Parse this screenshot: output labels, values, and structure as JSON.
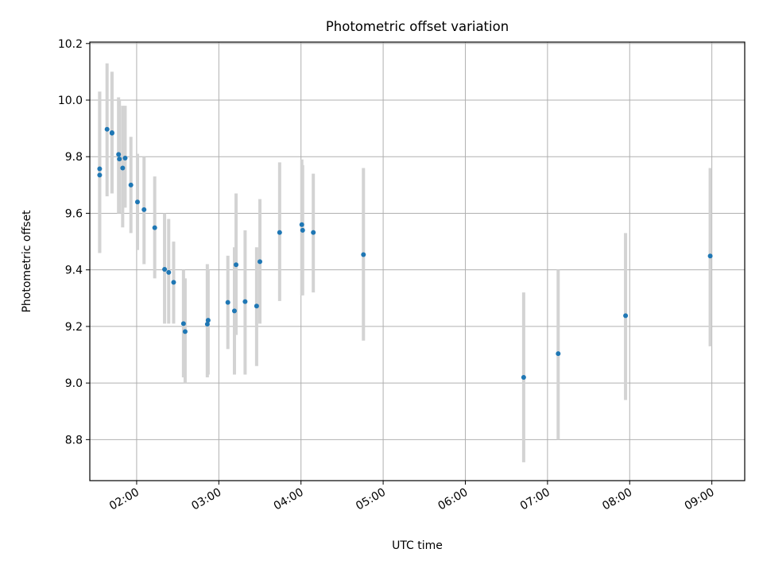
{
  "chart_data": {
    "type": "scatter",
    "title": "Photometric offset variation",
    "xlabel": "UTC time",
    "ylabel": "Photometric offset",
    "x_unit": "hours UTC",
    "xlim": [
      1.43,
      9.4
    ],
    "ylim": [
      8.655,
      10.205
    ],
    "x_ticks": [
      {
        "value": 2,
        "label": "02:00"
      },
      {
        "value": 3,
        "label": "03:00"
      },
      {
        "value": 4,
        "label": "04:00"
      },
      {
        "value": 5,
        "label": "05:00"
      },
      {
        "value": 6,
        "label": "06:00"
      },
      {
        "value": 7,
        "label": "07:00"
      },
      {
        "value": 8,
        "label": "08:00"
      },
      {
        "value": 9,
        "label": "09:00"
      }
    ],
    "y_ticks": [
      {
        "value": 8.8,
        "label": "8.8"
      },
      {
        "value": 9.0,
        "label": "9.0"
      },
      {
        "value": 9.2,
        "label": "9.2"
      },
      {
        "value": 9.4,
        "label": "9.4"
      },
      {
        "value": 9.6,
        "label": "9.6"
      },
      {
        "value": 9.8,
        "label": "9.8"
      },
      {
        "value": 10.0,
        "label": "10.0"
      },
      {
        "value": 10.2,
        "label": "10.2"
      }
    ],
    "grid": true,
    "point_color": "#1f77b4",
    "errorbar_color": "#d3d3d3",
    "points": [
      {
        "x": 1.55,
        "y": 9.735,
        "ylow": 9.46,
        "yhigh": 10.03
      },
      {
        "x": 1.55,
        "y": 9.757,
        "ylow": 9.46,
        "yhigh": 10.03
      },
      {
        "x": 1.64,
        "y": 9.897,
        "ylow": 9.66,
        "yhigh": 10.13
      },
      {
        "x": 1.7,
        "y": 9.883,
        "ylow": 9.67,
        "yhigh": 10.1
      },
      {
        "x": 1.7,
        "y": 9.885,
        "ylow": 9.67,
        "yhigh": 10.1
      },
      {
        "x": 1.78,
        "y": 9.808,
        "ylow": 9.6,
        "yhigh": 10.01
      },
      {
        "x": 1.79,
        "y": 9.792,
        "ylow": 9.6,
        "yhigh": 10.0
      },
      {
        "x": 1.83,
        "y": 9.76,
        "ylow": 9.55,
        "yhigh": 9.98
      },
      {
        "x": 1.86,
        "y": 9.795,
        "ylow": 9.62,
        "yhigh": 9.98
      },
      {
        "x": 1.93,
        "y": 9.7,
        "ylow": 9.53,
        "yhigh": 9.87
      },
      {
        "x": 2.01,
        "y": 9.64,
        "ylow": 9.47,
        "yhigh": 9.81
      },
      {
        "x": 2.09,
        "y": 9.613,
        "ylow": 9.42,
        "yhigh": 9.8
      },
      {
        "x": 2.22,
        "y": 9.549,
        "ylow": 9.37,
        "yhigh": 9.73
      },
      {
        "x": 2.34,
        "y": 9.402,
        "ylow": 9.21,
        "yhigh": 9.6
      },
      {
        "x": 2.39,
        "y": 9.391,
        "ylow": 9.21,
        "yhigh": 9.58
      },
      {
        "x": 2.45,
        "y": 9.356,
        "ylow": 9.21,
        "yhigh": 9.5
      },
      {
        "x": 2.57,
        "y": 9.21,
        "ylow": 9.02,
        "yhigh": 9.4
      },
      {
        "x": 2.59,
        "y": 9.182,
        "ylow": 9.0,
        "yhigh": 9.37
      },
      {
        "x": 2.86,
        "y": 9.208,
        "ylow": 9.02,
        "yhigh": 9.42
      },
      {
        "x": 2.87,
        "y": 9.222,
        "ylow": 9.03,
        "yhigh": 9.4
      },
      {
        "x": 3.11,
        "y": 9.285,
        "ylow": 9.12,
        "yhigh": 9.45
      },
      {
        "x": 3.19,
        "y": 9.255,
        "ylow": 9.03,
        "yhigh": 9.48
      },
      {
        "x": 3.21,
        "y": 9.418,
        "ylow": 9.17,
        "yhigh": 9.67
      },
      {
        "x": 3.32,
        "y": 9.288,
        "ylow": 9.03,
        "yhigh": 9.54
      },
      {
        "x": 3.46,
        "y": 9.272,
        "ylow": 9.06,
        "yhigh": 9.48
      },
      {
        "x": 3.5,
        "y": 9.429,
        "ylow": 9.21,
        "yhigh": 9.65
      },
      {
        "x": 3.74,
        "y": 9.532,
        "ylow": 9.29,
        "yhigh": 9.78
      },
      {
        "x": 4.01,
        "y": 9.56,
        "ylow": 9.31,
        "yhigh": 9.79
      },
      {
        "x": 4.02,
        "y": 9.54,
        "ylow": 9.31,
        "yhigh": 9.77
      },
      {
        "x": 4.15,
        "y": 9.532,
        "ylow": 9.32,
        "yhigh": 9.74
      },
      {
        "x": 4.76,
        "y": 9.454,
        "ylow": 9.15,
        "yhigh": 9.76
      },
      {
        "x": 6.71,
        "y": 9.02,
        "ylow": 8.72,
        "yhigh": 9.32
      },
      {
        "x": 7.13,
        "y": 9.104,
        "ylow": 8.8,
        "yhigh": 9.4
      },
      {
        "x": 7.95,
        "y": 9.238,
        "ylow": 8.94,
        "yhigh": 9.53
      },
      {
        "x": 8.98,
        "y": 9.449,
        "ylow": 9.13,
        "yhigh": 9.76
      }
    ]
  }
}
